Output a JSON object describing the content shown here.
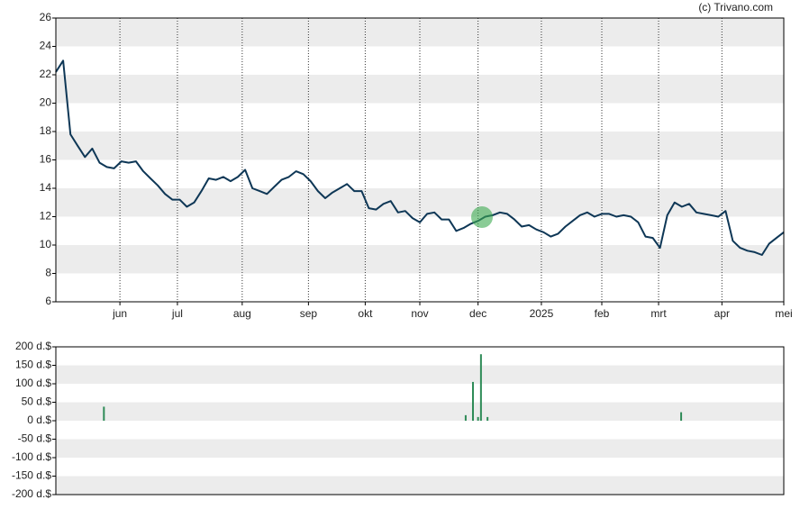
{
  "credit": "(c) Trivano.com",
  "chart_data": [
    {
      "type": "line",
      "series": [
        {
          "color": "#0e3756",
          "values": [
            22.2,
            23.0,
            17.8,
            17.0,
            16.2,
            16.8,
            15.8,
            15.5,
            15.4,
            15.9,
            15.8,
            15.9,
            15.2,
            14.7,
            14.2,
            13.6,
            13.2,
            13.2,
            12.7,
            13.0,
            13.8,
            14.7,
            14.6,
            14.8,
            14.5,
            14.8,
            15.3,
            14.0,
            13.8,
            13.6,
            14.1,
            14.6,
            14.8,
            15.2,
            15.0,
            14.5,
            13.8,
            13.3,
            13.7,
            14.0,
            14.3,
            13.8,
            13.8,
            12.6,
            12.5,
            12.9,
            13.1,
            12.3,
            12.4,
            11.9,
            11.6,
            12.2,
            12.3,
            11.8,
            11.8,
            11.0,
            11.2,
            11.5,
            11.7,
            12.0,
            12.1,
            12.3,
            12.2,
            11.8,
            11.3,
            11.4,
            11.1,
            10.9,
            10.6,
            10.8,
            11.3,
            11.7,
            12.1,
            12.3,
            12.0,
            12.2,
            12.2,
            12.0,
            12.1,
            12.0,
            11.6,
            10.6,
            10.5,
            9.8,
            12.1,
            13.0,
            12.7,
            12.9,
            12.3,
            12.2,
            12.1,
            12.0,
            12.4,
            10.3,
            9.8,
            9.6,
            9.5,
            9.3,
            10.1,
            10.5,
            10.9
          ]
        }
      ],
      "xlim": [
        0,
        100
      ],
      "xticks": [
        {
          "value": 8.8,
          "label": "jun"
        },
        {
          "value": 16.7,
          "label": "jul"
        },
        {
          "value": 25.6,
          "label": "aug"
        },
        {
          "value": 34.7,
          "label": "sep"
        },
        {
          "value": 42.5,
          "label": "okt"
        },
        {
          "value": 50,
          "label": "nov"
        },
        {
          "value": 58,
          "label": "dec"
        },
        {
          "value": 66.7,
          "label": "2025"
        },
        {
          "value": 75,
          "label": "feb"
        },
        {
          "value": 82.8,
          "label": "mrt"
        },
        {
          "value": 91.5,
          "label": "apr"
        },
        {
          "value": 100,
          "label": "mei"
        }
      ],
      "ylim": [
        6,
        26
      ],
      "yticks": [
        6,
        8,
        10,
        12,
        14,
        16,
        18,
        20,
        22,
        24,
        26
      ],
      "grid": true
    },
    {
      "type": "bar",
      "color": "#2e8b57",
      "x": [
        6.6,
        56.3,
        57.3,
        58.0,
        58.4,
        59.3,
        85.9
      ],
      "values": [
        38,
        15,
        105,
        10,
        180,
        10,
        23
      ],
      "xlim": [
        0,
        100
      ],
      "ylim": [
        -200,
        200
      ],
      "yticks": [
        {
          "value": 200,
          "label": "200 d.$"
        },
        {
          "value": 150,
          "label": "150 d.$"
        },
        {
          "value": 100,
          "label": "100 d.$"
        },
        {
          "value": 50,
          "label": "50 d.$"
        },
        {
          "value": 0,
          "label": "0 d.$"
        },
        {
          "value": -50,
          "label": "-50 d.$"
        },
        {
          "value": -100,
          "label": "-100 d.$"
        },
        {
          "value": -150,
          "label": "-150 d.$"
        },
        {
          "value": -200,
          "label": "-200 d.$"
        }
      ],
      "grid": false
    }
  ]
}
